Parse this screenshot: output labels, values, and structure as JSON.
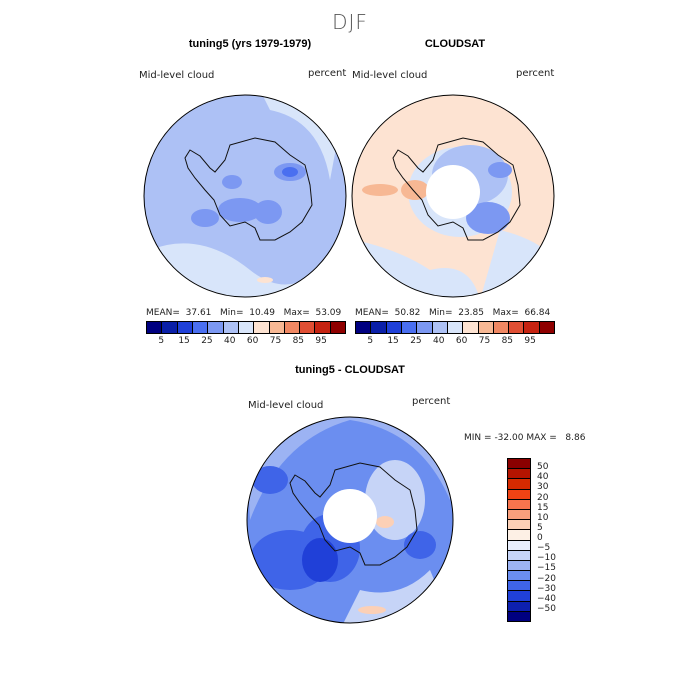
{
  "main_title": "DJF",
  "colors": {
    "abs_scale": [
      "#000080",
      "#0a1fa8",
      "#1f40d8",
      "#4a6ff0",
      "#7c98f2",
      "#adc1f5",
      "#d8e5fa",
      "#fde3d2",
      "#f7b894",
      "#f08863",
      "#e04f34",
      "#c52311",
      "#8f0000"
    ],
    "diff_scale": [
      "#8b0000",
      "#b41400",
      "#d62a00",
      "#f04314",
      "#f7744d",
      "#fa9f7c",
      "#fcd0b6",
      "#fdf0e5",
      "#e8eefc",
      "#c6d4f7",
      "#9cb3f3",
      "#6b8ef0",
      "#3f64e8",
      "#2040d8",
      "#0d20b0",
      "#000080"
    ]
  },
  "chart_data": [
    {
      "type": "polar_contour_map",
      "title": "tuning5 (yrs 1979-1979)",
      "left_label": "Mid-level cloud",
      "right_label": "percent",
      "stats": {
        "mean_label": "MEAN=",
        "mean": "37.61",
        "min_label": "Min=",
        "min": "10.49",
        "max_label": "Max=",
        "max": "53.09"
      },
      "colorbar_ticks": [
        "5",
        "15",
        "25",
        "40",
        "60",
        "75",
        "85",
        "95"
      ]
    },
    {
      "type": "polar_contour_map",
      "title": "CLOUDSAT",
      "left_label": "Mid-level cloud",
      "right_label": "percent",
      "stats": {
        "mean_label": "MEAN=",
        "mean": "50.82",
        "min_label": "Min=",
        "min": "23.85",
        "max_label": "Max=",
        "max": "66.84"
      },
      "colorbar_ticks": [
        "5",
        "15",
        "25",
        "40",
        "60",
        "75",
        "85",
        "95"
      ]
    },
    {
      "type": "polar_contour_map",
      "title": "tuning5 - CLOUDSAT",
      "left_label": "Mid-level cloud",
      "right_label": "percent",
      "stats": {
        "min_label": "MIN =",
        "min": "-32.00",
        "max_label": "MAX =",
        "max": "8.86"
      },
      "colorbar_ticks": [
        "50",
        "40",
        "30",
        "20",
        "15",
        "10",
        "5",
        "0",
        "−5",
        "−10",
        "−15",
        "−20",
        "−30",
        "−40",
        "−50"
      ]
    }
  ]
}
